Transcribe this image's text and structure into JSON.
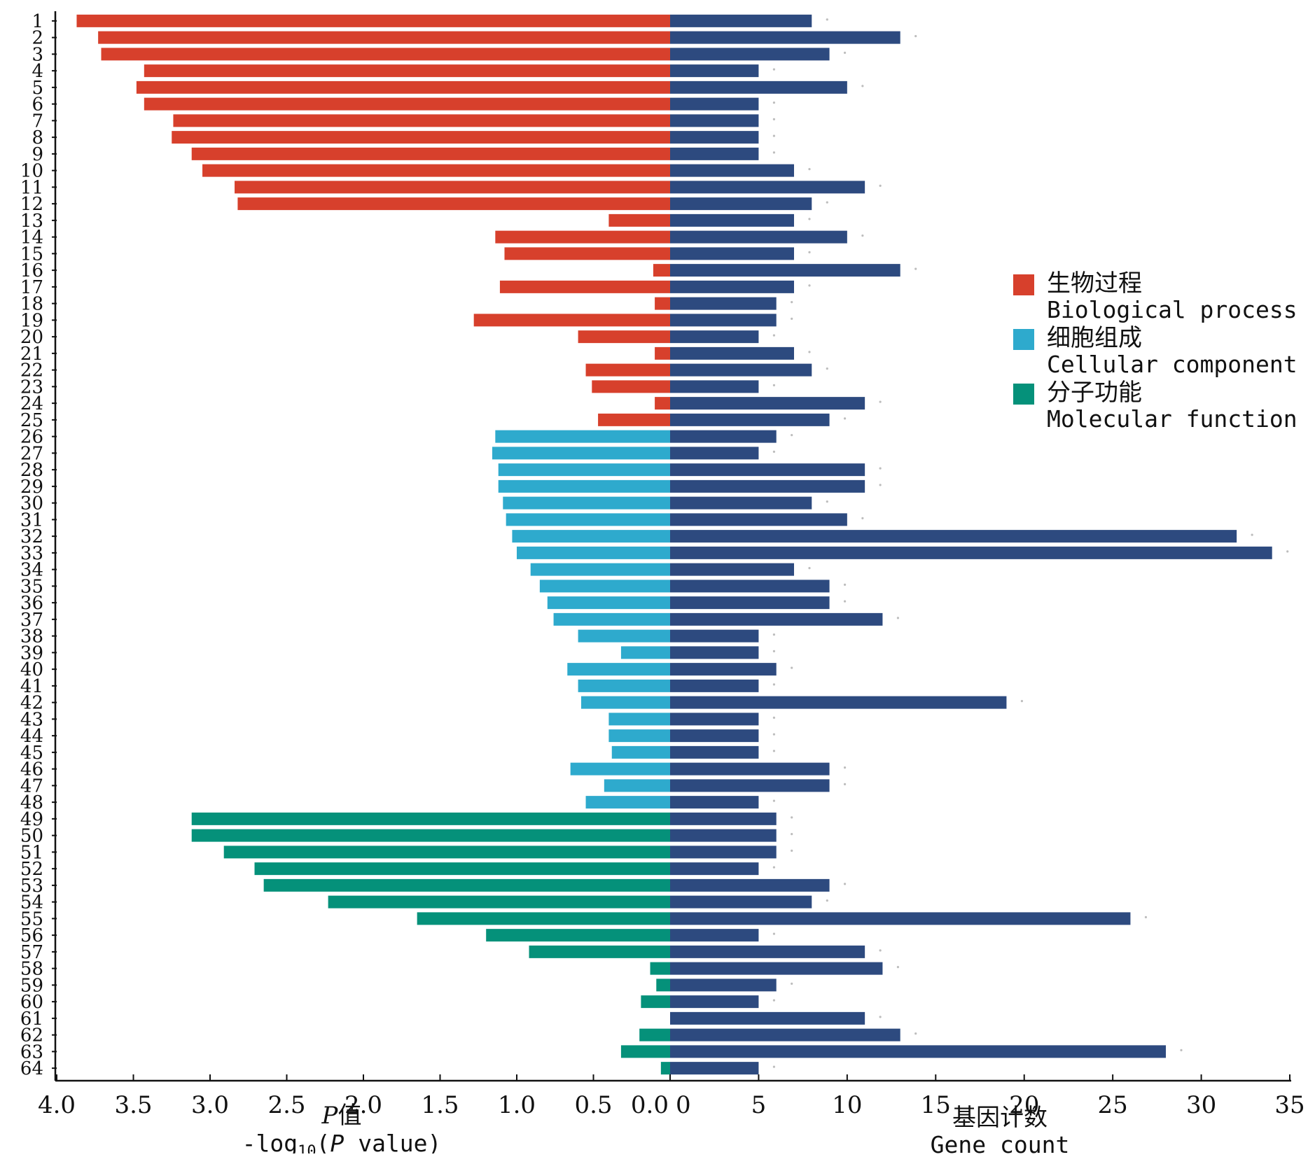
{
  "chart_data": {
    "type": "bar",
    "orientation": "horizontal-butterfly",
    "categories": [
      "1",
      "2",
      "3",
      "4",
      "5",
      "6",
      "7",
      "8",
      "9",
      "10",
      "11",
      "12",
      "13",
      "14",
      "15",
      "16",
      "17",
      "18",
      "19",
      "20",
      "21",
      "22",
      "23",
      "24",
      "25",
      "26",
      "27",
      "28",
      "29",
      "30",
      "31",
      "32",
      "33",
      "34",
      "35",
      "36",
      "37",
      "38",
      "39",
      "40",
      "41",
      "42",
      "43",
      "44",
      "45",
      "46",
      "47",
      "48",
      "49",
      "50",
      "51",
      "52",
      "53",
      "54",
      "55",
      "56",
      "57",
      "58",
      "59",
      "60",
      "61",
      "62",
      "63",
      "64"
    ],
    "category_groups": [
      "bio",
      "bio",
      "bio",
      "bio",
      "bio",
      "bio",
      "bio",
      "bio",
      "bio",
      "bio",
      "bio",
      "bio",
      "bio",
      "bio",
      "bio",
      "bio",
      "bio",
      "bio",
      "bio",
      "bio",
      "bio",
      "bio",
      "bio",
      "bio",
      "bio",
      "cell",
      "cell",
      "cell",
      "cell",
      "cell",
      "cell",
      "cell",
      "cell",
      "cell",
      "cell",
      "cell",
      "cell",
      "cell",
      "cell",
      "cell",
      "cell",
      "cell",
      "cell",
      "cell",
      "cell",
      "cell",
      "cell",
      "cell",
      "mol",
      "mol",
      "mol",
      "mol",
      "mol",
      "mol",
      "mol",
      "mol",
      "mol",
      "mol",
      "mol",
      "mol",
      "mol",
      "mol",
      "mol",
      "mol"
    ],
    "series": [
      {
        "key": "log_p",
        "values": [
          3.87,
          3.73,
          3.71,
          3.43,
          3.48,
          3.43,
          3.24,
          3.25,
          3.12,
          3.05,
          2.84,
          2.82,
          0.4,
          1.14,
          1.08,
          0.11,
          1.11,
          0.1,
          1.28,
          0.6,
          0.1,
          0.55,
          0.51,
          0.1,
          0.47,
          1.14,
          1.16,
          1.12,
          1.12,
          1.09,
          1.07,
          1.03,
          1.0,
          0.91,
          0.85,
          0.8,
          0.76,
          0.6,
          0.32,
          0.67,
          0.6,
          0.58,
          0.4,
          0.4,
          0.38,
          0.65,
          0.43,
          0.55,
          3.12,
          3.12,
          2.91,
          2.71,
          2.65,
          2.23,
          1.65,
          1.2,
          0.92,
          0.13,
          0.09,
          0.19,
          0.0,
          0.2,
          0.32,
          0.06
        ]
      },
      {
        "key": "gene_count",
        "values": [
          8,
          13,
          9,
          5,
          10,
          5,
          5,
          5,
          5,
          7,
          11,
          8,
          7,
          10,
          7,
          13,
          7,
          6,
          6,
          5,
          7,
          8,
          5,
          11,
          9,
          6,
          5,
          11,
          11,
          8,
          10,
          32,
          34,
          7,
          9,
          9,
          12,
          5,
          5,
          6,
          5,
          19,
          5,
          5,
          5,
          9,
          9,
          5,
          6,
          6,
          6,
          5,
          9,
          8,
          26,
          5,
          11,
          12,
          6,
          5,
          11,
          13,
          28,
          5
        ]
      }
    ],
    "left_axis": {
      "xlim": [
        4.0,
        0.0
      ],
      "ticks": [
        "4.0",
        "3.5",
        "3.0",
        "2.5",
        "2.0",
        "1.5",
        "1.0",
        "0.5",
        "0.0"
      ],
      "label_line1_italic": "P",
      "label_line1_rest": "值",
      "label_line2_prefix": "-log",
      "label_line2_sub": "10",
      "label_line2_paren_open": "(",
      "label_line2_italic": "P",
      "label_line2_suffix": " value)"
    },
    "right_axis": {
      "xlim": [
        0,
        35
      ],
      "ticks": [
        "0",
        "5",
        "10",
        "15",
        "20",
        "25",
        "30",
        "35"
      ],
      "label_line1": "基因计数",
      "label_line2": "Gene count"
    },
    "legend": {
      "placement": "right-middle",
      "items": [
        {
          "key": "bio",
          "zh": "生物过程",
          "en": "Biological process",
          "color": "#d7402c"
        },
        {
          "key": "cell",
          "zh": "细胞组成",
          "en": "Cellular component",
          "color": "#2eaacd"
        },
        {
          "key": "mol",
          "zh": "分子功能",
          "en": "Molecular function",
          "color": "#05917a"
        }
      ]
    },
    "count_color": "#2d4a7f",
    "grid": false
  }
}
